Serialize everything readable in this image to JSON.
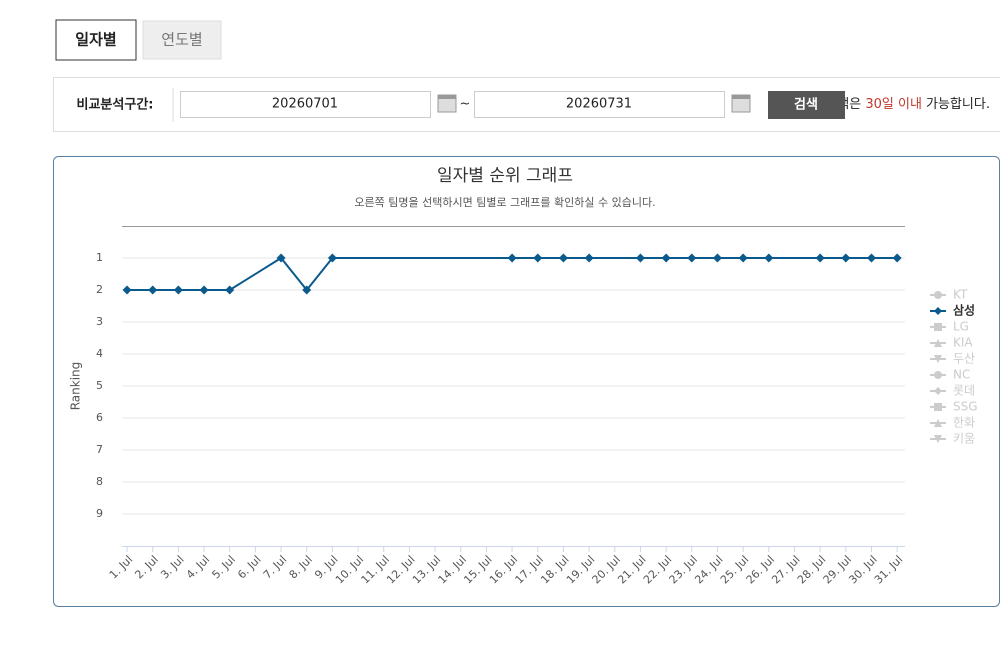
{
  "tabs": [
    {
      "label": "일자별",
      "active": true
    },
    {
      "label": "연도별",
      "active": false
    }
  ],
  "search": {
    "label": "비교분석구간:",
    "start_date": "20260701",
    "separator": "~",
    "end_date": "20260731",
    "button": "검색",
    "note": {
      "before": "* 최대 검색은 ",
      "highlight": "30일 이내",
      "after": " 가능합니다."
    }
  },
  "chart_data": {
    "type": "line",
    "title": "일자별 순위 그래프",
    "subtitle": "오른쪽 팀명을 선택하시면 팀별로 그래프를 확인하실 수 있습니다.",
    "y_label": "Ranking",
    "categories": [
      "1. Jul",
      "2. Jul",
      "3. Jul",
      "4. Jul",
      "5. Jul",
      "6. Jul",
      "7. Jul",
      "8. Jul",
      "9. Jul",
      "10. Jul",
      "11. Jul",
      "12. Jul",
      "13. Jul",
      "14. Jul",
      "15. Jul",
      "16. Jul",
      "17. Jul",
      "18. Jul",
      "19. Jul",
      "20. Jul",
      "21. Jul",
      "22. Jul",
      "23. Jul",
      "24. Jul",
      "25. Jul",
      "26. Jul",
      "27. Jul",
      "28. Jul",
      "29. Jul",
      "30. Jul",
      "31. Jul"
    ],
    "ylim": [
      0,
      10
    ],
    "y_reversed": true,
    "yticks": [
      1,
      2,
      3,
      4,
      5,
      6,
      7,
      8,
      9
    ],
    "grid": true,
    "connect_nulls": true,
    "legend": "right",
    "series": [
      {
        "name": "KT",
        "color": "#cccccc",
        "marker": "circle",
        "visible": false
      },
      {
        "name": "삼성",
        "color": "#0b5a8e",
        "marker": "diamond",
        "visible": true,
        "values": [
          2,
          2,
          2,
          2,
          2,
          null,
          1,
          2,
          1,
          null,
          null,
          null,
          null,
          null,
          null,
          1,
          1,
          1,
          1,
          null,
          1,
          1,
          1,
          1,
          1,
          1,
          null,
          1,
          1,
          1,
          1
        ]
      },
      {
        "name": "LG",
        "color": "#cccccc",
        "marker": "square",
        "visible": false
      },
      {
        "name": "KIA",
        "color": "#cccccc",
        "marker": "triangle",
        "visible": false
      },
      {
        "name": "두산",
        "color": "#cccccc",
        "marker": "triangle-down",
        "visible": false
      },
      {
        "name": "NC",
        "color": "#cccccc",
        "marker": "circle",
        "visible": false
      },
      {
        "name": "롯데",
        "color": "#cccccc",
        "marker": "diamond",
        "visible": false
      },
      {
        "name": "SSG",
        "color": "#cccccc",
        "marker": "square",
        "visible": false
      },
      {
        "name": "한화",
        "color": "#cccccc",
        "marker": "triangle",
        "visible": false
      },
      {
        "name": "키움",
        "color": "#cccccc",
        "marker": "triangle-down",
        "visible": false
      }
    ]
  }
}
